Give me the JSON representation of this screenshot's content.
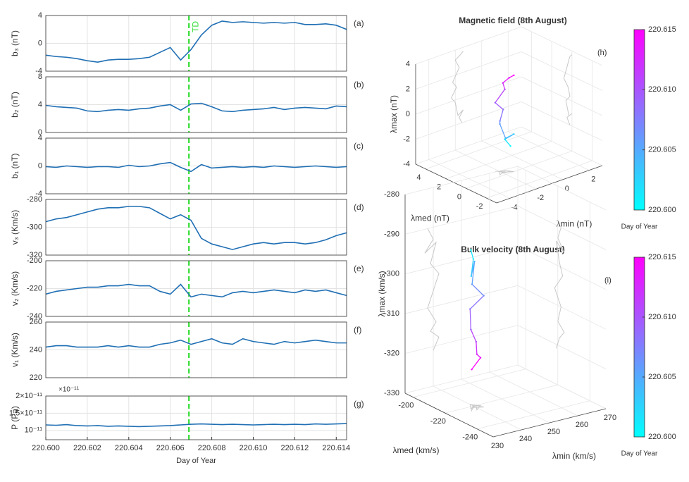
{
  "chart_data": [
    {
      "type": "line",
      "ylabel": "b₃ (nT)",
      "annotation": "(a)",
      "color": "#1f6fb4",
      "x": [
        220.6,
        220.6005,
        220.601,
        220.6015,
        220.602,
        220.6025,
        220.603,
        220.6035,
        220.604,
        220.6045,
        220.605,
        220.6055,
        220.606,
        220.6065,
        220.607,
        220.6075,
        220.608,
        220.6085,
        220.609,
        220.6095,
        220.61,
        220.6105,
        220.611,
        220.6115,
        220.612,
        220.6125,
        220.613,
        220.6135,
        220.614,
        220.6145
      ],
      "values": [
        -1.7,
        -1.9,
        -2.0,
        -2.2,
        -2.5,
        -2.7,
        -2.4,
        -2.3,
        -2.3,
        -2.2,
        -2.0,
        -1.3,
        -0.6,
        -2.4,
        -0.9,
        1.2,
        2.6,
        3.2,
        3.0,
        3.1,
        3.0,
        2.9,
        3.0,
        2.9,
        3.0,
        2.7,
        2.7,
        2.8,
        2.6,
        2.0
      ],
      "xlim": [
        220.6,
        220.6145
      ],
      "ylim": [
        -4,
        4
      ],
      "yticks": [
        -4,
        0,
        4
      ],
      "grid": true,
      "vline": {
        "x": 220.6069,
        "color": "#33dd33"
      },
      "vline_label": "TD"
    },
    {
      "type": "line",
      "ylabel": "b₂ (nT)",
      "annotation": "(b)",
      "color": "#1f6fb4",
      "x": [
        220.6,
        220.6005,
        220.601,
        220.6015,
        220.602,
        220.6025,
        220.603,
        220.6035,
        220.604,
        220.6045,
        220.605,
        220.6055,
        220.606,
        220.6065,
        220.607,
        220.6075,
        220.608,
        220.6085,
        220.609,
        220.6095,
        220.61,
        220.6105,
        220.611,
        220.6115,
        220.612,
        220.6125,
        220.613,
        220.6135,
        220.614,
        220.6145
      ],
      "values": [
        3.9,
        3.7,
        3.6,
        3.5,
        3.1,
        3.0,
        3.2,
        3.3,
        3.2,
        3.4,
        3.5,
        3.8,
        4.0,
        3.2,
        4.1,
        4.2,
        3.7,
        3.1,
        3.0,
        3.2,
        3.3,
        3.4,
        3.6,
        3.3,
        3.5,
        3.6,
        3.5,
        3.4,
        3.8,
        3.7
      ],
      "xlim": [
        220.6,
        220.6145
      ],
      "ylim": [
        0,
        8
      ],
      "yticks": [
        0,
        4,
        8
      ],
      "grid": true,
      "vline": {
        "x": 220.6069,
        "color": "#33dd33"
      }
    },
    {
      "type": "line",
      "ylabel": "b₁ (nT)",
      "annotation": "(c)",
      "color": "#1f6fb4",
      "x": [
        220.6,
        220.6005,
        220.601,
        220.6015,
        220.602,
        220.6025,
        220.603,
        220.6035,
        220.604,
        220.6045,
        220.605,
        220.6055,
        220.606,
        220.6065,
        220.607,
        220.6075,
        220.608,
        220.6085,
        220.609,
        220.6095,
        220.61,
        220.6105,
        220.611,
        220.6115,
        220.612,
        220.6125,
        220.613,
        220.6135,
        220.614,
        220.6145
      ],
      "values": [
        -0.1,
        -0.2,
        0,
        -0.1,
        -0.2,
        -0.1,
        -0.1,
        -0.2,
        0.1,
        -0.1,
        0,
        0.3,
        0.5,
        -0.2,
        -0.8,
        0.2,
        -0.3,
        -0.2,
        -0.1,
        -0.2,
        -0.1,
        -0.2,
        0,
        -0.1,
        -0.2,
        -0.1,
        0,
        -0.1,
        -0.2,
        -0.1
      ],
      "xlim": [
        220.6,
        220.6145
      ],
      "ylim": [
        -4,
        4
      ],
      "yticks": [
        -4,
        0,
        4
      ],
      "grid": true,
      "vline": {
        "x": 220.6069,
        "color": "#33dd33"
      }
    },
    {
      "type": "line",
      "ylabel": "v₃ (Km/s)",
      "annotation": "(d)",
      "color": "#1f6fb4",
      "x": [
        220.6,
        220.6005,
        220.601,
        220.6015,
        220.602,
        220.6025,
        220.603,
        220.6035,
        220.604,
        220.6045,
        220.605,
        220.6055,
        220.606,
        220.6065,
        220.607,
        220.6075,
        220.608,
        220.6085,
        220.609,
        220.6095,
        220.61,
        220.6105,
        220.611,
        220.6115,
        220.612,
        220.6125,
        220.613,
        220.6135,
        220.614,
        220.6145
      ],
      "values": [
        -296,
        -294,
        -293,
        -291,
        -289,
        -287,
        -286,
        -286,
        -285,
        -285,
        -286,
        -290,
        -294,
        -291,
        -295,
        -308,
        -312,
        -314,
        -316,
        -314,
        -312,
        -311,
        -312,
        -311,
        -311,
        -312,
        -311,
        -309,
        -306,
        -304
      ],
      "xlim": [
        220.6,
        220.6145
      ],
      "ylim": [
        -320,
        -280
      ],
      "yticks": [
        -320,
        -300,
        -280
      ],
      "grid": true,
      "vline": {
        "x": 220.6069,
        "color": "#33dd33"
      }
    },
    {
      "type": "line",
      "ylabel": "v₂ (Km/s)",
      "annotation": "(e)",
      "color": "#1f6fb4",
      "x": [
        220.6,
        220.6005,
        220.601,
        220.6015,
        220.602,
        220.6025,
        220.603,
        220.6035,
        220.604,
        220.6045,
        220.605,
        220.6055,
        220.606,
        220.6065,
        220.607,
        220.6075,
        220.608,
        220.6085,
        220.609,
        220.6095,
        220.61,
        220.6105,
        220.611,
        220.6115,
        220.612,
        220.6125,
        220.613,
        220.6135,
        220.614,
        220.6145
      ],
      "values": [
        -224,
        -222,
        -221,
        -220,
        -219,
        -219,
        -218,
        -218,
        -217,
        -218,
        -218,
        -222,
        -224,
        -217,
        -226,
        -224,
        -225,
        -226,
        -223,
        -222,
        -223,
        -222,
        -221,
        -222,
        -223,
        -221,
        -222,
        -221,
        -223,
        -225
      ],
      "xlim": [
        220.6,
        220.6145
      ],
      "ylim": [
        -240,
        -200
      ],
      "yticks": [
        -240,
        -220,
        -200
      ],
      "grid": true,
      "vline": {
        "x": 220.6069,
        "color": "#33dd33"
      }
    },
    {
      "type": "line",
      "ylabel": "v₁ (Km/s)",
      "annotation": "(f)",
      "color": "#1f6fb4",
      "x": [
        220.6,
        220.6005,
        220.601,
        220.6015,
        220.602,
        220.6025,
        220.603,
        220.6035,
        220.604,
        220.6045,
        220.605,
        220.6055,
        220.606,
        220.6065,
        220.607,
        220.6075,
        220.608,
        220.6085,
        220.609,
        220.6095,
        220.61,
        220.6105,
        220.611,
        220.6115,
        220.612,
        220.6125,
        220.613,
        220.6135,
        220.614,
        220.6145
      ],
      "values": [
        242,
        243,
        243,
        242,
        242,
        242,
        243,
        242,
        243,
        242,
        242,
        244,
        245,
        247,
        244,
        246,
        248,
        245,
        244,
        248,
        246,
        245,
        244,
        246,
        245,
        246,
        247,
        246,
        245,
        245
      ],
      "xlim": [
        220.6,
        220.6145
      ],
      "ylim": [
        220,
        260
      ],
      "yticks": [
        220,
        240,
        260
      ],
      "grid": true,
      "vline": {
        "x": 220.6069,
        "color": "#33dd33"
      }
    },
    {
      "type": "line",
      "ylabel": "P (Pa)",
      "annotation": "(g)",
      "color": "#1f6fb4",
      "axis_exponent": "×10⁻¹¹",
      "xlabel": "Day of Year",
      "x": [
        220.6,
        220.6005,
        220.601,
        220.6015,
        220.602,
        220.6025,
        220.603,
        220.6035,
        220.604,
        220.6045,
        220.605,
        220.6055,
        220.606,
        220.6065,
        220.607,
        220.6075,
        220.608,
        220.6085,
        220.609,
        220.6095,
        220.61,
        220.6105,
        220.611,
        220.6115,
        220.612,
        220.6125,
        220.613,
        220.6135,
        220.614,
        220.6145
      ],
      "values": [
        1.16e-11,
        1.15e-11,
        1.17e-11,
        1.14e-11,
        1.13e-11,
        1.14e-11,
        1.12e-11,
        1.13e-11,
        1.12e-11,
        1.11e-11,
        1.12e-11,
        1.13e-11,
        1.14e-11,
        1.16e-11,
        1.18e-11,
        1.19e-11,
        1.18e-11,
        1.17e-11,
        1.18e-11,
        1.17e-11,
        1.16e-11,
        1.17e-11,
        1.18e-11,
        1.17e-11,
        1.18e-11,
        1.17e-11,
        1.19e-11,
        1.18e-11,
        1.19e-11,
        1.2e-11
      ],
      "xlim": [
        220.6,
        220.6145
      ],
      "ylim": [
        7.3e-12,
        2e-11
      ],
      "yticks": [
        {
          "value": 1e-11,
          "label": "10⁻¹¹"
        },
        {
          "value": 1.5e-11,
          "label": "1.5×10⁻¹¹"
        },
        {
          "value": 2e-11,
          "label": "2×10⁻¹¹"
        }
      ],
      "xticks": [
        {
          "value": 220.6,
          "label": "220.600"
        },
        {
          "value": 220.602,
          "label": "220.602"
        },
        {
          "value": 220.604,
          "label": "220.604"
        },
        {
          "value": 220.606,
          "label": "220.606"
        },
        {
          "value": 220.608,
          "label": "220.608"
        },
        {
          "value": 220.61,
          "label": "220.610"
        },
        {
          "value": 220.612,
          "label": "220.612"
        },
        {
          "value": 220.614,
          "label": "220.614"
        }
      ],
      "grid": true,
      "vline": {
        "x": 220.6069,
        "color": "#33dd33"
      }
    },
    {
      "type": "scatter3d",
      "title": "Magnetic field (8th August)",
      "annotation": "(h)",
      "xlabel": "λmin (nT)",
      "ylabel": "λmed (nT)",
      "zlabel": "λmax (nT)",
      "xlim": [
        -5,
        3
      ],
      "ylim": [
        -3,
        5
      ],
      "zlim": [
        -4,
        4
      ],
      "xticks": [
        -4,
        -2,
        0,
        2
      ],
      "yticks": [
        -2,
        0,
        2,
        4
      ],
      "zticks": [
        -4,
        -2,
        0,
        2,
        4
      ],
      "t": [
        220.6,
        220.6014,
        220.6027,
        220.6041,
        220.6055,
        220.6068,
        220.6082,
        220.6095,
        220.6109,
        220.6123,
        220.6136,
        220.615
      ],
      "x": [
        -1.5,
        -1.7,
        -1.4,
        -1.8,
        -2.0,
        -2.3,
        -1.9,
        -2.2,
        -1.7,
        -2.0,
        -1.6,
        -1.4
      ],
      "y": [
        0.2,
        0.5,
        0.0,
        0.3,
        0.6,
        0.2,
        0.4,
        0.8,
        0.5,
        0.3,
        0.2,
        0.0
      ],
      "z": [
        -2.0,
        -1.5,
        -1.0,
        -1.3,
        -0.2,
        0.3,
        1.0,
        1.5,
        2.5,
        3.2,
        3.5,
        3.7
      ],
      "shadow_color": "#c8c8c8",
      "colorbar": {
        "label": "Day of Year",
        "lim": [
          220.6,
          220.615
        ],
        "colors": [
          "#00ffff",
          "#ff00ff"
        ],
        "ticks": [
          {
            "value": 220.6,
            "label": "220.600"
          },
          {
            "value": 220.605,
            "label": "220.605"
          },
          {
            "value": 220.61,
            "label": "220.610"
          },
          {
            "value": 220.615,
            "label": "220.615"
          }
        ]
      }
    },
    {
      "type": "scatter3d",
      "title": "Bulk velocity (8th August)",
      "annotation": "(i)",
      "xlabel": "λmin (km/s)",
      "ylabel": "λmed (km/s)",
      "zlabel": "λmax (km/s)",
      "xlim": [
        230,
        270
      ],
      "ylim": [
        -250,
        -195
      ],
      "zlim": [
        -330,
        -280
      ],
      "xticks": [
        230,
        240,
        250,
        260,
        270
      ],
      "yticks": [
        -240,
        -220,
        -200
      ],
      "zticks": [
        -330,
        -320,
        -310,
        -300,
        -290,
        -280
      ],
      "t": [
        220.6,
        220.6014,
        220.6027,
        220.6041,
        220.6055,
        220.6068,
        220.6082,
        220.6095,
        220.6109,
        220.6123,
        220.6136,
        220.615
      ],
      "x": [
        238,
        240,
        237,
        241,
        239,
        242,
        240,
        238,
        241,
        239,
        242,
        240
      ],
      "y": [
        -222,
        -220,
        -224,
        -219,
        -221,
        -223,
        -218,
        -222,
        -220,
        -224,
        -221,
        -219
      ],
      "z": [
        -290,
        -293,
        -296,
        -294,
        -299,
        -302,
        -306,
        -310,
        -314,
        -316,
        -318,
        -321
      ],
      "shadow_color": "#c8c8c8",
      "colorbar": {
        "label": "Day of Year",
        "lim": [
          220.6,
          220.615
        ],
        "colors": [
          "#00ffff",
          "#ff00ff"
        ],
        "ticks": [
          {
            "value": 220.6,
            "label": "220.600"
          },
          {
            "value": 220.605,
            "label": "220.605"
          },
          {
            "value": 220.61,
            "label": "220.610"
          },
          {
            "value": 220.615,
            "label": "220.615"
          }
        ]
      }
    }
  ]
}
